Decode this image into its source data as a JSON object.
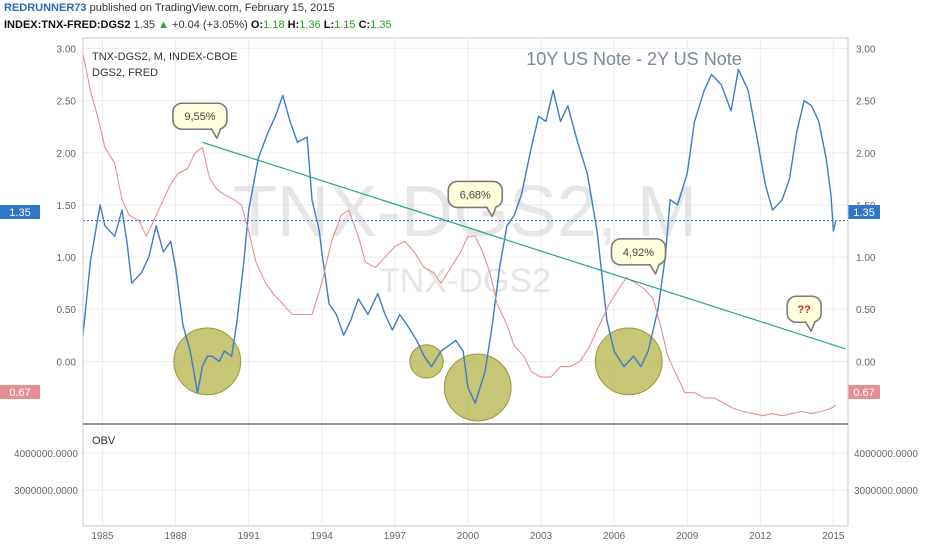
{
  "header": {
    "author": "REDRUNNER73",
    "published": "published on TradingView.com, February 15, 2015",
    "symbol": "INDEX:TNX-FRED:DGS2",
    "last": "1.35",
    "change": "+0.04 (+3.05%)",
    "o_label": "O:",
    "o": "1.18",
    "h_label": "H:",
    "h": "1.36",
    "l_label": "L:",
    "l": "1.15",
    "c_label": "C:",
    "c": "1.35"
  },
  "colors": {
    "main_line": "#3e7bcc",
    "secondary_line": "#e88f91",
    "trend_line": "#2aa874",
    "circle_fill": "#b4b248",
    "callout_fill": "#ffffdc",
    "price_tag": "#2f75c8",
    "price_tag_2": "#e88f91"
  },
  "panel": {
    "legend_1": "TNX-DGS2, M, INDEX-CBOE",
    "legend_2": "DGS2, FRED",
    "title": "10Y US Note - 2Y US Note",
    "watermark_big": "TNX-DGS2, M",
    "watermark_small": "TNX-DGS2",
    "price_tag": "1.35",
    "price_tag_2": "0.67",
    "callouts": [
      "9,55%",
      "6,68%",
      "4,92%",
      "??"
    ],
    "obv_label": "OBV"
  },
  "chart_data": {
    "type": "line",
    "xlim": [
      1984.2,
      2015.6
    ],
    "ylim": [
      -0.6,
      3.1
    ],
    "x_ticks": [
      "1985",
      "1988",
      "1991",
      "1994",
      "1997",
      "2000",
      "2003",
      "2006",
      "2009",
      "2012",
      "2015"
    ],
    "y_ticks": [
      "3.00",
      "2.50",
      "2.00",
      "1.50",
      "1.00",
      "0.50",
      "0.00"
    ],
    "obv_ticks": [
      "4000000.0000",
      "3000000.0000"
    ],
    "series": [
      {
        "name": "TNX-DGS2",
        "points": [
          [
            1984.2,
            0.25
          ],
          [
            1984.5,
            0.95
          ],
          [
            1984.9,
            1.5
          ],
          [
            1985.1,
            1.3
          ],
          [
            1985.5,
            1.2
          ],
          [
            1985.8,
            1.45
          ],
          [
            1986.0,
            1.15
          ],
          [
            1986.2,
            0.75
          ],
          [
            1986.6,
            0.85
          ],
          [
            1986.9,
            1.0
          ],
          [
            1987.2,
            1.3
          ],
          [
            1987.5,
            1.05
          ],
          [
            1987.8,
            1.15
          ],
          [
            1988.0,
            0.9
          ],
          [
            1988.3,
            0.35
          ],
          [
            1988.6,
            0.1
          ],
          [
            1988.9,
            -0.3
          ],
          [
            1989.1,
            -0.05
          ],
          [
            1989.3,
            0.05
          ],
          [
            1989.5,
            0.05
          ],
          [
            1989.8,
            0.0
          ],
          [
            1990.0,
            0.1
          ],
          [
            1990.3,
            0.05
          ],
          [
            1990.5,
            0.35
          ],
          [
            1990.8,
            0.95
          ],
          [
            1991.0,
            1.45
          ],
          [
            1991.4,
            1.95
          ],
          [
            1991.8,
            2.2
          ],
          [
            1992.1,
            2.35
          ],
          [
            1992.4,
            2.55
          ],
          [
            1992.7,
            2.3
          ],
          [
            1993.0,
            2.1
          ],
          [
            1993.4,
            2.15
          ],
          [
            1993.6,
            1.55
          ],
          [
            1993.9,
            1.25
          ],
          [
            1994.0,
            1.05
          ],
          [
            1994.3,
            0.55
          ],
          [
            1994.6,
            0.45
          ],
          [
            1994.9,
            0.25
          ],
          [
            1995.2,
            0.4
          ],
          [
            1995.5,
            0.6
          ],
          [
            1995.9,
            0.45
          ],
          [
            1996.3,
            0.65
          ],
          [
            1996.6,
            0.45
          ],
          [
            1996.9,
            0.3
          ],
          [
            1997.2,
            0.45
          ],
          [
            1997.5,
            0.35
          ],
          [
            1997.9,
            0.2
          ],
          [
            1998.2,
            0.05
          ],
          [
            1998.5,
            -0.05
          ],
          [
            1998.9,
            0.1
          ],
          [
            1999.2,
            0.15
          ],
          [
            1999.5,
            0.2
          ],
          [
            1999.8,
            0.1
          ],
          [
            2000.0,
            -0.25
          ],
          [
            2000.3,
            -0.4
          ],
          [
            2000.7,
            -0.1
          ],
          [
            2001.0,
            0.35
          ],
          [
            2001.3,
            0.9
          ],
          [
            2001.6,
            1.3
          ],
          [
            2001.9,
            1.4
          ],
          [
            2002.2,
            1.6
          ],
          [
            2002.6,
            2.05
          ],
          [
            2002.9,
            2.35
          ],
          [
            2003.2,
            2.3
          ],
          [
            2003.5,
            2.6
          ],
          [
            2003.8,
            2.3
          ],
          [
            2004.1,
            2.45
          ],
          [
            2004.5,
            2.1
          ],
          [
            2004.9,
            1.8
          ],
          [
            2005.3,
            1.25
          ],
          [
            2005.7,
            0.4
          ],
          [
            2006.0,
            0.1
          ],
          [
            2006.4,
            -0.05
          ],
          [
            2006.8,
            0.05
          ],
          [
            2007.1,
            -0.05
          ],
          [
            2007.4,
            0.1
          ],
          [
            2007.8,
            0.5
          ],
          [
            2008.1,
            1.0
          ],
          [
            2008.3,
            1.55
          ],
          [
            2008.6,
            1.5
          ],
          [
            2009.0,
            1.8
          ],
          [
            2009.3,
            2.3
          ],
          [
            2009.7,
            2.6
          ],
          [
            2010.0,
            2.75
          ],
          [
            2010.4,
            2.65
          ],
          [
            2010.8,
            2.4
          ],
          [
            2011.1,
            2.8
          ],
          [
            2011.5,
            2.6
          ],
          [
            2011.9,
            2.1
          ],
          [
            2012.2,
            1.7
          ],
          [
            2012.5,
            1.45
          ],
          [
            2012.9,
            1.55
          ],
          [
            2013.2,
            1.75
          ],
          [
            2013.5,
            2.2
          ],
          [
            2013.8,
            2.5
          ],
          [
            2014.1,
            2.45
          ],
          [
            2014.4,
            2.3
          ],
          [
            2014.7,
            1.95
          ],
          [
            2014.9,
            1.6
          ],
          [
            2015.0,
            1.25
          ],
          [
            2015.1,
            1.35
          ]
        ]
      },
      {
        "name": "DGS2",
        "points": [
          [
            1984.2,
            2.95
          ],
          [
            1984.5,
            2.6
          ],
          [
            1984.8,
            2.35
          ],
          [
            1985.1,
            2.05
          ],
          [
            1985.5,
            1.9
          ],
          [
            1985.8,
            1.55
          ],
          [
            1986.1,
            1.4
          ],
          [
            1986.5,
            1.35
          ],
          [
            1986.8,
            1.2
          ],
          [
            1987.1,
            1.35
          ],
          [
            1987.5,
            1.55
          ],
          [
            1987.8,
            1.7
          ],
          [
            1988.1,
            1.8
          ],
          [
            1988.5,
            1.85
          ],
          [
            1988.8,
            2.0
          ],
          [
            1989.1,
            2.05
          ],
          [
            1989.4,
            1.75
          ],
          [
            1989.7,
            1.65
          ],
          [
            1990.0,
            1.6
          ],
          [
            1990.4,
            1.55
          ],
          [
            1990.7,
            1.5
          ],
          [
            1991.0,
            1.25
          ],
          [
            1991.3,
            0.95
          ],
          [
            1991.7,
            0.75
          ],
          [
            1992.0,
            0.65
          ],
          [
            1992.4,
            0.55
          ],
          [
            1992.8,
            0.45
          ],
          [
            1993.2,
            0.45
          ],
          [
            1993.6,
            0.45
          ],
          [
            1994.0,
            0.75
          ],
          [
            1994.4,
            1.15
          ],
          [
            1994.8,
            1.4
          ],
          [
            1995.1,
            1.45
          ],
          [
            1995.5,
            1.2
          ],
          [
            1995.8,
            0.95
          ],
          [
            1996.2,
            0.9
          ],
          [
            1996.6,
            1.0
          ],
          [
            1997.0,
            1.1
          ],
          [
            1997.4,
            1.15
          ],
          [
            1997.8,
            1.05
          ],
          [
            1998.2,
            0.9
          ],
          [
            1998.6,
            0.85
          ],
          [
            1998.9,
            0.75
          ],
          [
            1999.3,
            0.9
          ],
          [
            1999.7,
            1.05
          ],
          [
            2000.0,
            1.2
          ],
          [
            2000.3,
            1.2
          ],
          [
            2000.6,
            1.05
          ],
          [
            2000.9,
            0.85
          ],
          [
            2001.2,
            0.55
          ],
          [
            2001.6,
            0.35
          ],
          [
            2001.9,
            0.15
          ],
          [
            2002.3,
            0.05
          ],
          [
            2002.6,
            -0.1
          ],
          [
            2003.0,
            -0.15
          ],
          [
            2003.4,
            -0.15
          ],
          [
            2003.8,
            -0.05
          ],
          [
            2004.2,
            -0.05
          ],
          [
            2004.6,
            0.0
          ],
          [
            2005.0,
            0.15
          ],
          [
            2005.4,
            0.35
          ],
          [
            2005.8,
            0.55
          ],
          [
            2006.2,
            0.7
          ],
          [
            2006.5,
            0.8
          ],
          [
            2006.9,
            0.75
          ],
          [
            2007.2,
            0.7
          ],
          [
            2007.6,
            0.6
          ],
          [
            2007.9,
            0.35
          ],
          [
            2008.2,
            0.05
          ],
          [
            2008.5,
            -0.1
          ],
          [
            2008.9,
            -0.3
          ],
          [
            2009.3,
            -0.3
          ],
          [
            2009.7,
            -0.35
          ],
          [
            2010.1,
            -0.35
          ],
          [
            2010.5,
            -0.4
          ],
          [
            2010.9,
            -0.45
          ],
          [
            2011.3,
            -0.48
          ],
          [
            2011.7,
            -0.5
          ],
          [
            2012.1,
            -0.52
          ],
          [
            2012.5,
            -0.5
          ],
          [
            2012.9,
            -0.52
          ],
          [
            2013.3,
            -0.5
          ],
          [
            2013.7,
            -0.48
          ],
          [
            2014.1,
            -0.5
          ],
          [
            2014.5,
            -0.48
          ],
          [
            2014.9,
            -0.45
          ],
          [
            2015.1,
            -0.42
          ]
        ]
      }
    ],
    "trend_line": [
      [
        1989.1,
        2.1
      ],
      [
        2015.5,
        0.12
      ]
    ],
    "circles": [
      {
        "x": 1989.3,
        "y": 0.0,
        "r": 0.32
      },
      {
        "x": 1998.3,
        "y": 0.0,
        "r": 0.16
      },
      {
        "x": 2000.4,
        "y": -0.25,
        "r": 0.32
      },
      {
        "x": 2006.6,
        "y": 0.0,
        "r": 0.32
      }
    ],
    "callout_positions": [
      [
        1989.0,
        2.35
      ],
      [
        2000.3,
        1.6
      ],
      [
        2007.0,
        1.05
      ],
      [
        2013.8,
        0.5
      ]
    ]
  }
}
